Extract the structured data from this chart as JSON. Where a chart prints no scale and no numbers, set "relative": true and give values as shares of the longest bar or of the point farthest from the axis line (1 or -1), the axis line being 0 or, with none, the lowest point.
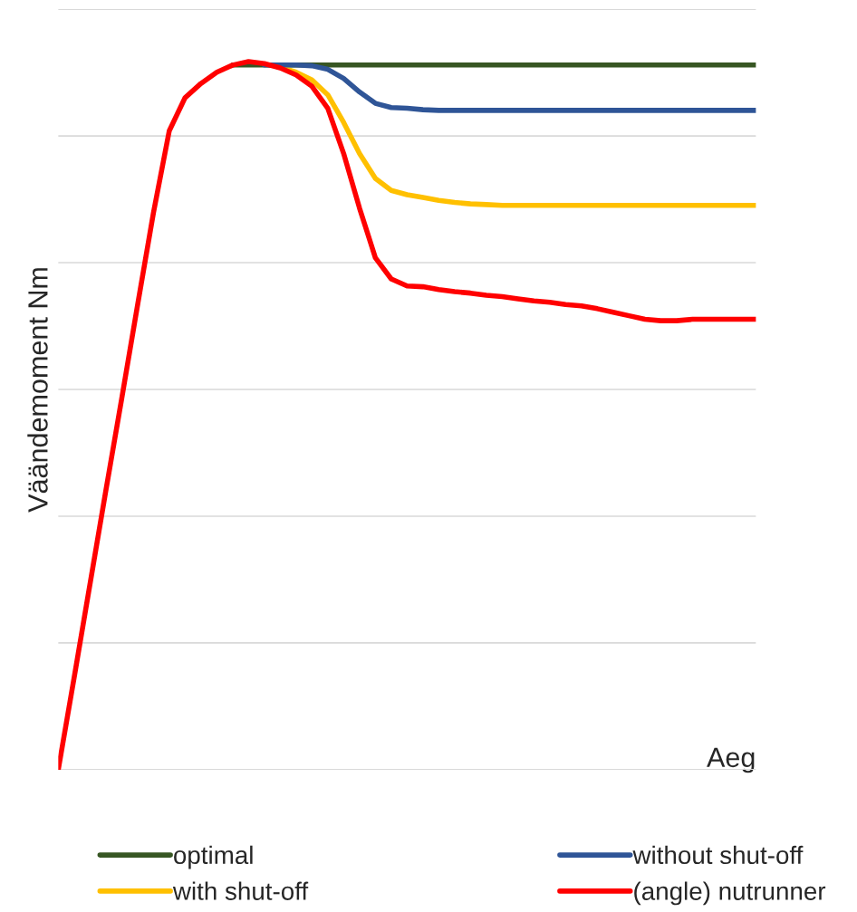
{
  "chart_data": {
    "type": "line",
    "relative": true,
    "xlabel": "Aeg",
    "ylabel": "Väändemoment Nm",
    "grid": "y",
    "legend": "bottom",
    "tick_labels": false,
    "marker": "none",
    "line_style": "solid",
    "categories": [
      null,
      null,
      null,
      null,
      null,
      null,
      null,
      null,
      null,
      null,
      null,
      null,
      null,
      null,
      null,
      null,
      null,
      null,
      null,
      null,
      null,
      null,
      null,
      null,
      null,
      null,
      null,
      null,
      null,
      null,
      null,
      null,
      null,
      null,
      null,
      null,
      null,
      null,
      null,
      null,
      null,
      null,
      null,
      null,
      null
    ],
    "series": [
      {
        "name": "optimal",
        "color": "#375623",
        "values": [
          null,
          null,
          null,
          null,
          null,
          null,
          null,
          null,
          null,
          null,
          null,
          0.995,
          0.995,
          0.995,
          0.995,
          0.995,
          0.995,
          0.995,
          0.995,
          0.995,
          0.995,
          0.995,
          0.995,
          0.995,
          0.995,
          0.995,
          0.995,
          0.995,
          0.995,
          0.995,
          0.995,
          0.995,
          0.995,
          0.995,
          0.995,
          0.995,
          0.995,
          0.995,
          0.995,
          0.995,
          0.995,
          0.995,
          0.995,
          0.995,
          0.995
        ]
      },
      {
        "name": "with shut-off",
        "color": "#ffc000",
        "values": [
          null,
          null,
          null,
          null,
          null,
          null,
          null,
          null,
          null,
          null,
          null,
          null,
          null,
          null,
          0.992,
          0.985,
          0.974,
          0.953,
          0.914,
          0.87,
          0.835,
          0.818,
          0.812,
          0.808,
          0.804,
          0.801,
          0.799,
          0.798,
          0.797,
          0.797,
          0.797,
          0.797,
          0.797,
          0.797,
          0.797,
          0.797,
          0.797,
          0.797,
          0.797,
          0.797,
          0.797,
          0.797,
          0.797,
          0.797,
          0.797
        ]
      },
      {
        "name": "without shut-off",
        "color": "#2f5597",
        "values": [
          null,
          null,
          null,
          null,
          null,
          null,
          null,
          null,
          null,
          null,
          null,
          null,
          null,
          0.995,
          0.995,
          0.995,
          0.994,
          0.989,
          0.976,
          0.957,
          0.941,
          0.935,
          0.934,
          0.932,
          0.931,
          0.931,
          0.931,
          0.931,
          0.931,
          0.931,
          0.931,
          0.931,
          0.931,
          0.931,
          0.931,
          0.931,
          0.931,
          0.931,
          0.931,
          0.931,
          0.931,
          0.931,
          0.931,
          0.931,
          0.931
        ]
      },
      {
        "name": "(angle) nutrunner",
        "color": "#ff0000",
        "values": [
          0,
          0.13,
          0.262,
          0.394,
          0.524,
          0.656,
          0.786,
          0.902,
          0.949,
          0.969,
          0.985,
          0.995,
          1.0,
          0.997,
          0.991,
          0.981,
          0.965,
          0.934,
          0.87,
          0.793,
          0.723,
          0.693,
          0.683,
          0.682,
          0.678,
          0.675,
          0.673,
          0.67,
          0.668,
          0.665,
          0.662,
          0.66,
          0.657,
          0.655,
          0.651,
          0.646,
          0.641,
          0.636,
          0.634,
          0.634,
          0.636,
          0.636,
          0.636,
          0.636,
          0.636
        ]
      }
    ]
  }
}
